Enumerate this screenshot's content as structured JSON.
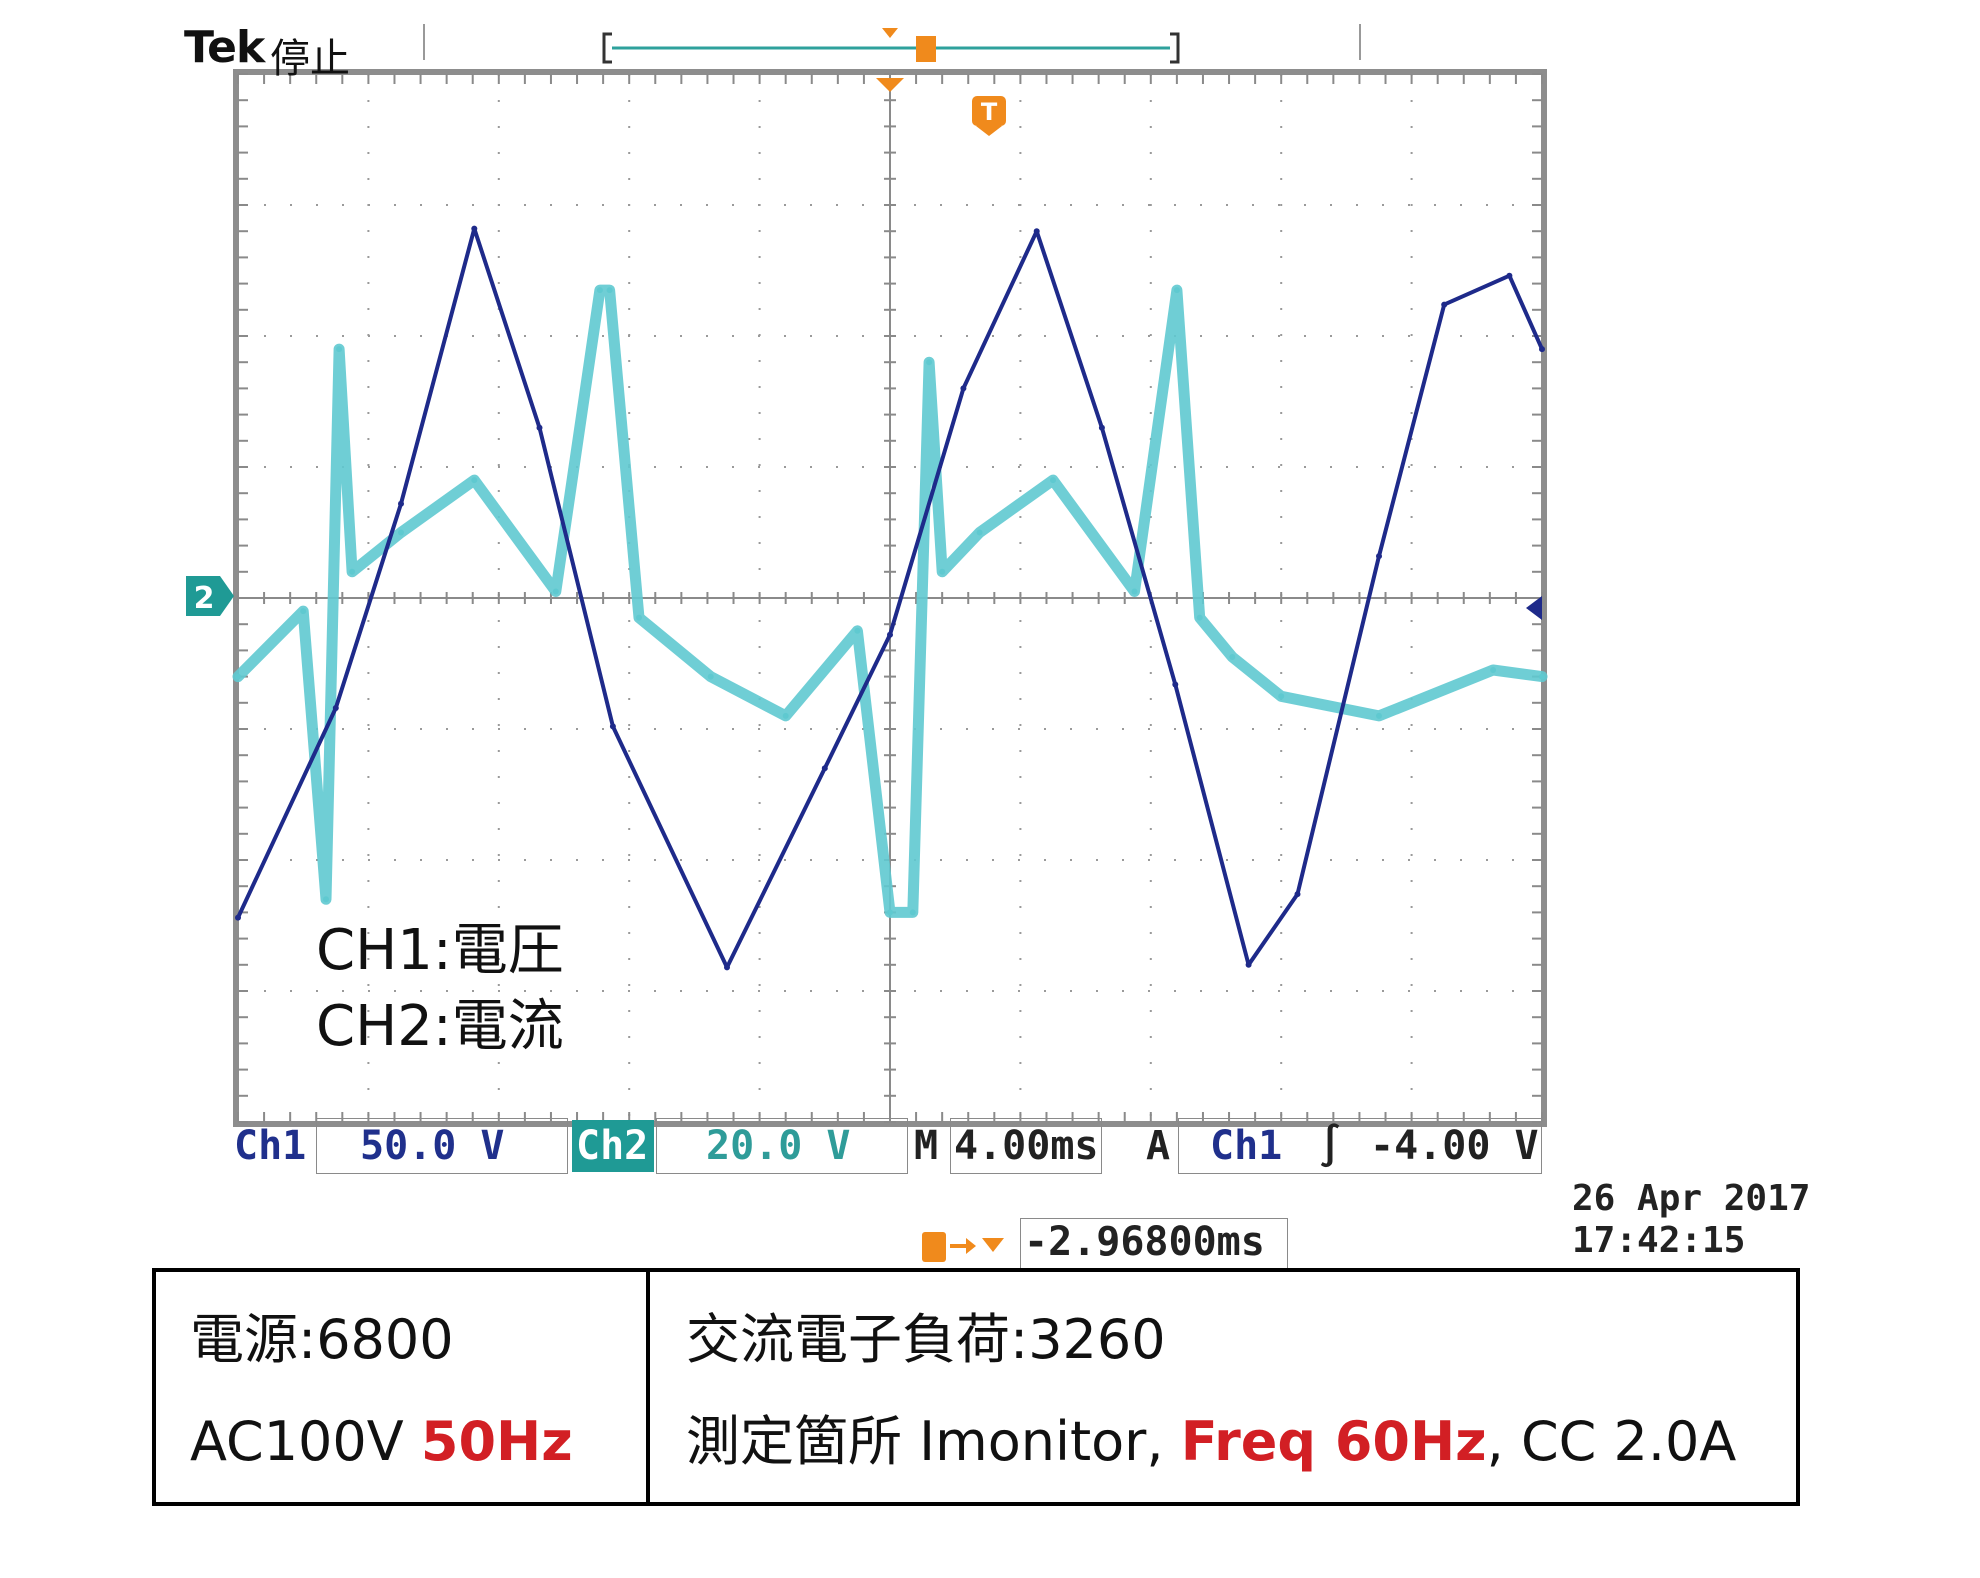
{
  "header": {
    "brand": "Tek",
    "state": "停止"
  },
  "chart_data": {
    "type": "line",
    "title": "",
    "x_unit": "ms",
    "time_per_div_ms": 4.0,
    "grid": true,
    "grid_divisions": {
      "x": 10,
      "y": 8
    },
    "series": [
      {
        "name": "CH1:電圧",
        "color": "#1e2a8a",
        "volts_per_div": 50.0,
        "frequency_hz": 50,
        "amplitude_v": 140,
        "x_ms": [
          -20.0,
          -17.0,
          -15.0,
          -12.75,
          -10.75,
          -8.5,
          -5.0,
          -2.0,
          0.0,
          2.25,
          4.5,
          6.5,
          8.75,
          11.0,
          12.5,
          15.0,
          17.0,
          19.0,
          20.0
        ],
        "y_v": [
          -122,
          -42,
          36,
          141,
          65,
          -49,
          -141,
          -65,
          -14,
          80,
          140,
          65,
          -33,
          -140,
          -113,
          16,
          112,
          123,
          95
        ]
      },
      {
        "name": "CH2:電流",
        "color": "#5fc9d0",
        "amps_per_div": 20.0,
        "frequency_hz": 60,
        "amplitude_a": 18,
        "x_ms": [
          -20.0,
          -18.0,
          -17.3,
          -16.9,
          -16.5,
          -15.0,
          -12.75,
          -10.25,
          -8.9,
          -8.6,
          -7.7,
          -5.5,
          -3.2,
          -1.0,
          0.0,
          0.7,
          1.2,
          1.6,
          2.75,
          5.0,
          7.5,
          8.8,
          9.5,
          10.5,
          12.0,
          15.0,
          18.5,
          20.0
        ],
        "y_a": [
          -12,
          -2,
          -46,
          38,
          4,
          10,
          18,
          1,
          47,
          47,
          -3,
          -12,
          -18,
          -5,
          -48,
          -48,
          36,
          4,
          10,
          18,
          1,
          47,
          -3,
          -9,
          -15,
          -18,
          -11,
          -12
        ]
      }
    ]
  },
  "status_bar": {
    "ch1_label": "Ch1",
    "ch1_scale": "50.0 V",
    "ch2_label": "Ch2",
    "ch2_scale": "20.0 V",
    "time_label": "M",
    "time_value": "4.00ms",
    "trigger_label": "A",
    "trigger_channel": "Ch1",
    "trigger_slope": "∫",
    "trigger_level": "-4.00 V"
  },
  "trigger_offset": {
    "value": "-2.96800ms"
  },
  "timestamp": {
    "date": "26 Apr 2017",
    "time": "17:42:15"
  },
  "annotations": {
    "ch1": "CH1:電圧",
    "ch2": "CH2:電流"
  },
  "info_table": {
    "left_line1": "電源:6800",
    "left_line2_prefix": "AC100V ",
    "left_line2_red": "50Hz",
    "right_line1": "交流電子負荷:3260",
    "right_line2_prefix": "測定箇所 Imonitor, ",
    "right_line2_red": "Freq 60Hz",
    "right_line2_suffix": ", CC 2.0A"
  },
  "markers": {
    "ch2_ground": "2",
    "trigger": "T"
  }
}
